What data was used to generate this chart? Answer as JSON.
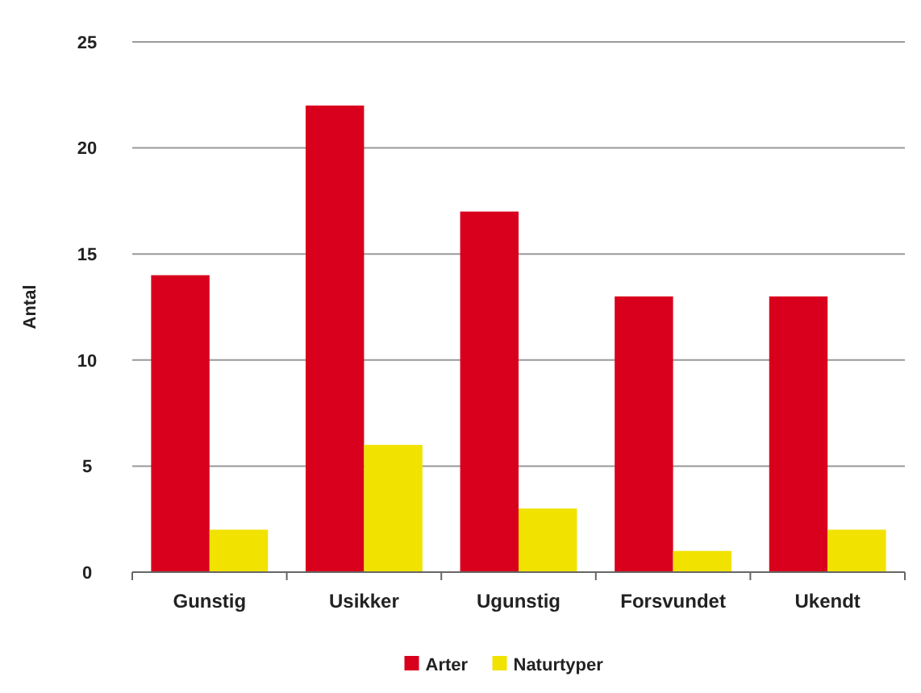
{
  "chart_data": {
    "type": "bar",
    "ylabel": "Antal",
    "categories": [
      "Gunstig",
      "Usikker",
      "Ugunstig",
      "Forsvundet",
      "Ukendt"
    ],
    "series": [
      {
        "name": "Arter",
        "color": "#d8001c",
        "values": [
          14,
          22,
          17,
          13,
          13
        ]
      },
      {
        "name": "Naturtyper",
        "color": "#f2e200",
        "values": [
          2,
          6,
          3,
          1,
          2
        ]
      }
    ],
    "ylim": [
      0,
      25
    ],
    "yticks": [
      0,
      5,
      10,
      15,
      20,
      25
    ],
    "grid": "y",
    "legend": "bottom"
  }
}
